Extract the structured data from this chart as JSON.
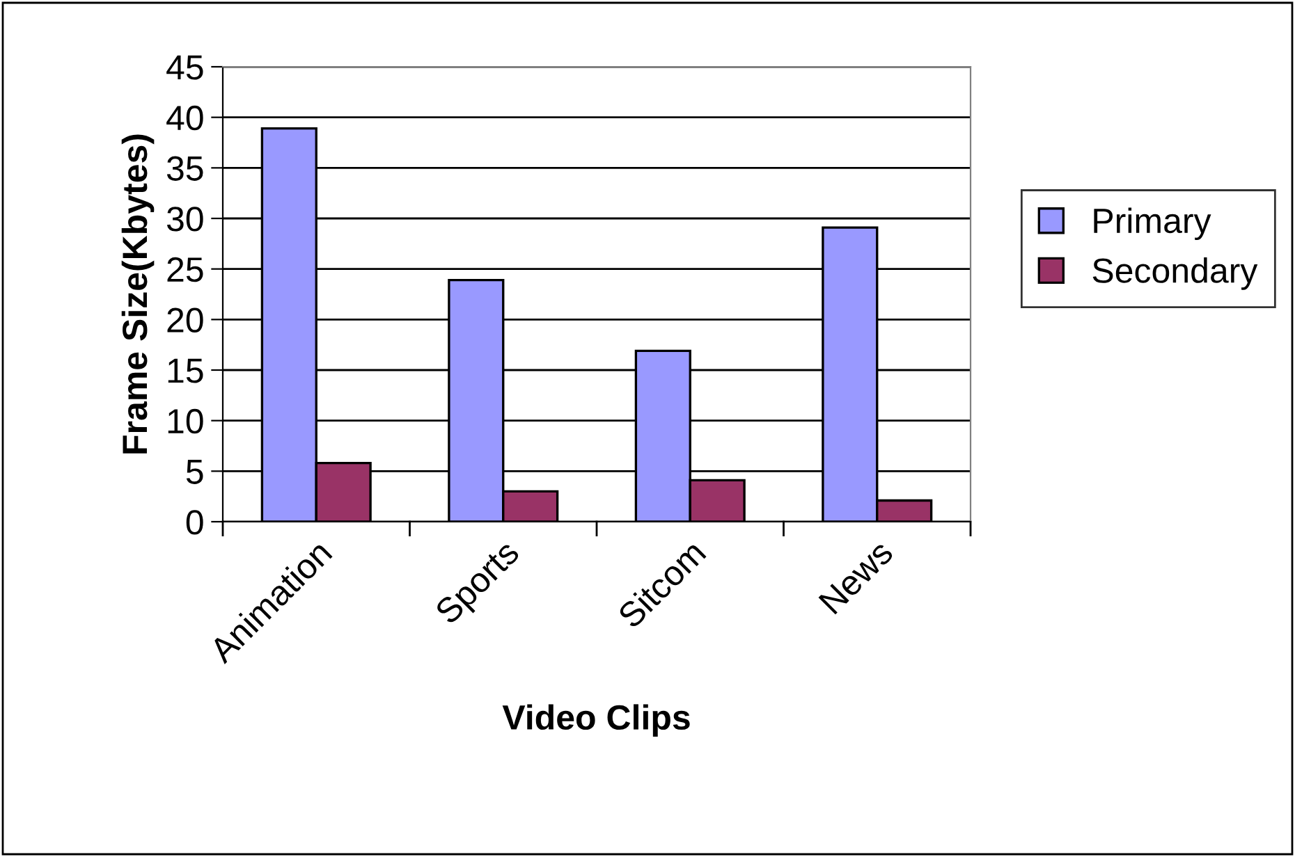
{
  "chart_data": {
    "type": "bar",
    "xlabel": "Video Clips",
    "ylabel": "Frame Size(Kbytes)",
    "categories": [
      "Animation",
      "Sports",
      "Sitcom",
      "News"
    ],
    "series": [
      {
        "name": "Primary",
        "color": "#9999ff",
        "values": [
          38.9,
          23.9,
          16.9,
          29.1
        ]
      },
      {
        "name": "Secondary",
        "color": "#993366",
        "values": [
          5.8,
          3.0,
          4.1,
          2.1
        ]
      }
    ],
    "ylim": [
      0,
      45
    ],
    "yticks": [
      0,
      5,
      10,
      15,
      20,
      25,
      30,
      35,
      40,
      45
    ],
    "grid": "y",
    "legend": "right"
  }
}
